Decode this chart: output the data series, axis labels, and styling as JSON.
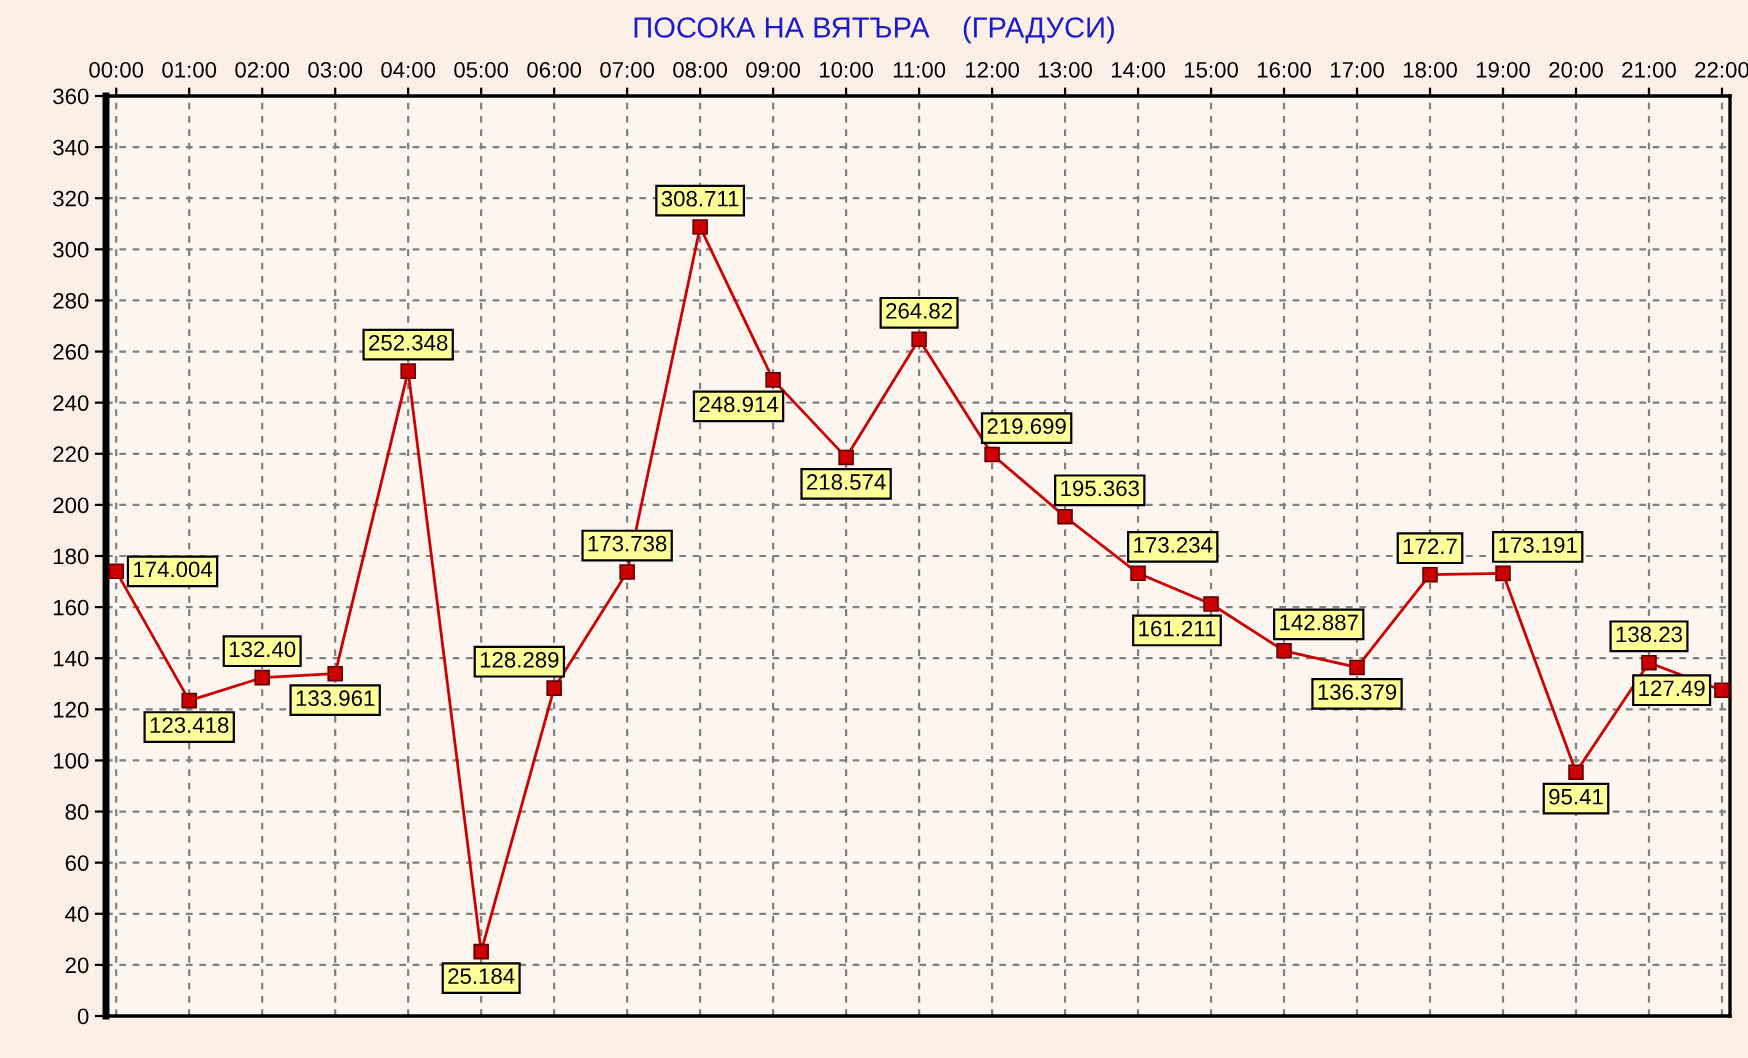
{
  "chart_data": {
    "type": "line",
    "title": "ПОСОКА НА ВЯТЪРА    (ГРАДУСИ)",
    "categories": [
      "00:00",
      "01:00",
      "02:00",
      "03:00",
      "04:00",
      "05:00",
      "06:00",
      "07:00",
      "08:00",
      "09:00",
      "10:00",
      "11:00",
      "12:00",
      "13:00",
      "14:00",
      "15:00",
      "16:00",
      "17:00",
      "18:00",
      "19:00",
      "20:00",
      "21:00",
      "22:00"
    ],
    "series": [
      {
        "color": "#cc0000",
        "values": [
          174.004,
          123.418,
          132.4,
          133.961,
          252.348,
          25.184,
          128.289,
          173.738,
          308.711,
          248.914,
          218.574,
          264.82,
          219.699,
          195.363,
          173.234,
          161.211,
          142.887,
          136.379,
          172.7,
          173.191,
          95.41,
          138.23,
          127.49
        ],
        "value_labels": [
          "174.004",
          "123.418",
          "132.40",
          "133.961",
          "252.348",
          "25.184",
          "128.289",
          "173.738",
          "308.711",
          "248.914",
          "218.574",
          "264.82",
          "219.699",
          "195.363",
          "173.234",
          "161.211",
          "142.887",
          "136.379",
          "172.7",
          "173.191",
          "95.41",
          "138.23",
          "127.49"
        ]
      }
    ],
    "ylim": [
      0,
      360
    ],
    "yticks": [
      0,
      20,
      40,
      60,
      80,
      100,
      120,
      140,
      160,
      180,
      200,
      220,
      240,
      260,
      280,
      300,
      320,
      340,
      360
    ],
    "grid": true,
    "marker": "square",
    "line_style": "solid"
  }
}
